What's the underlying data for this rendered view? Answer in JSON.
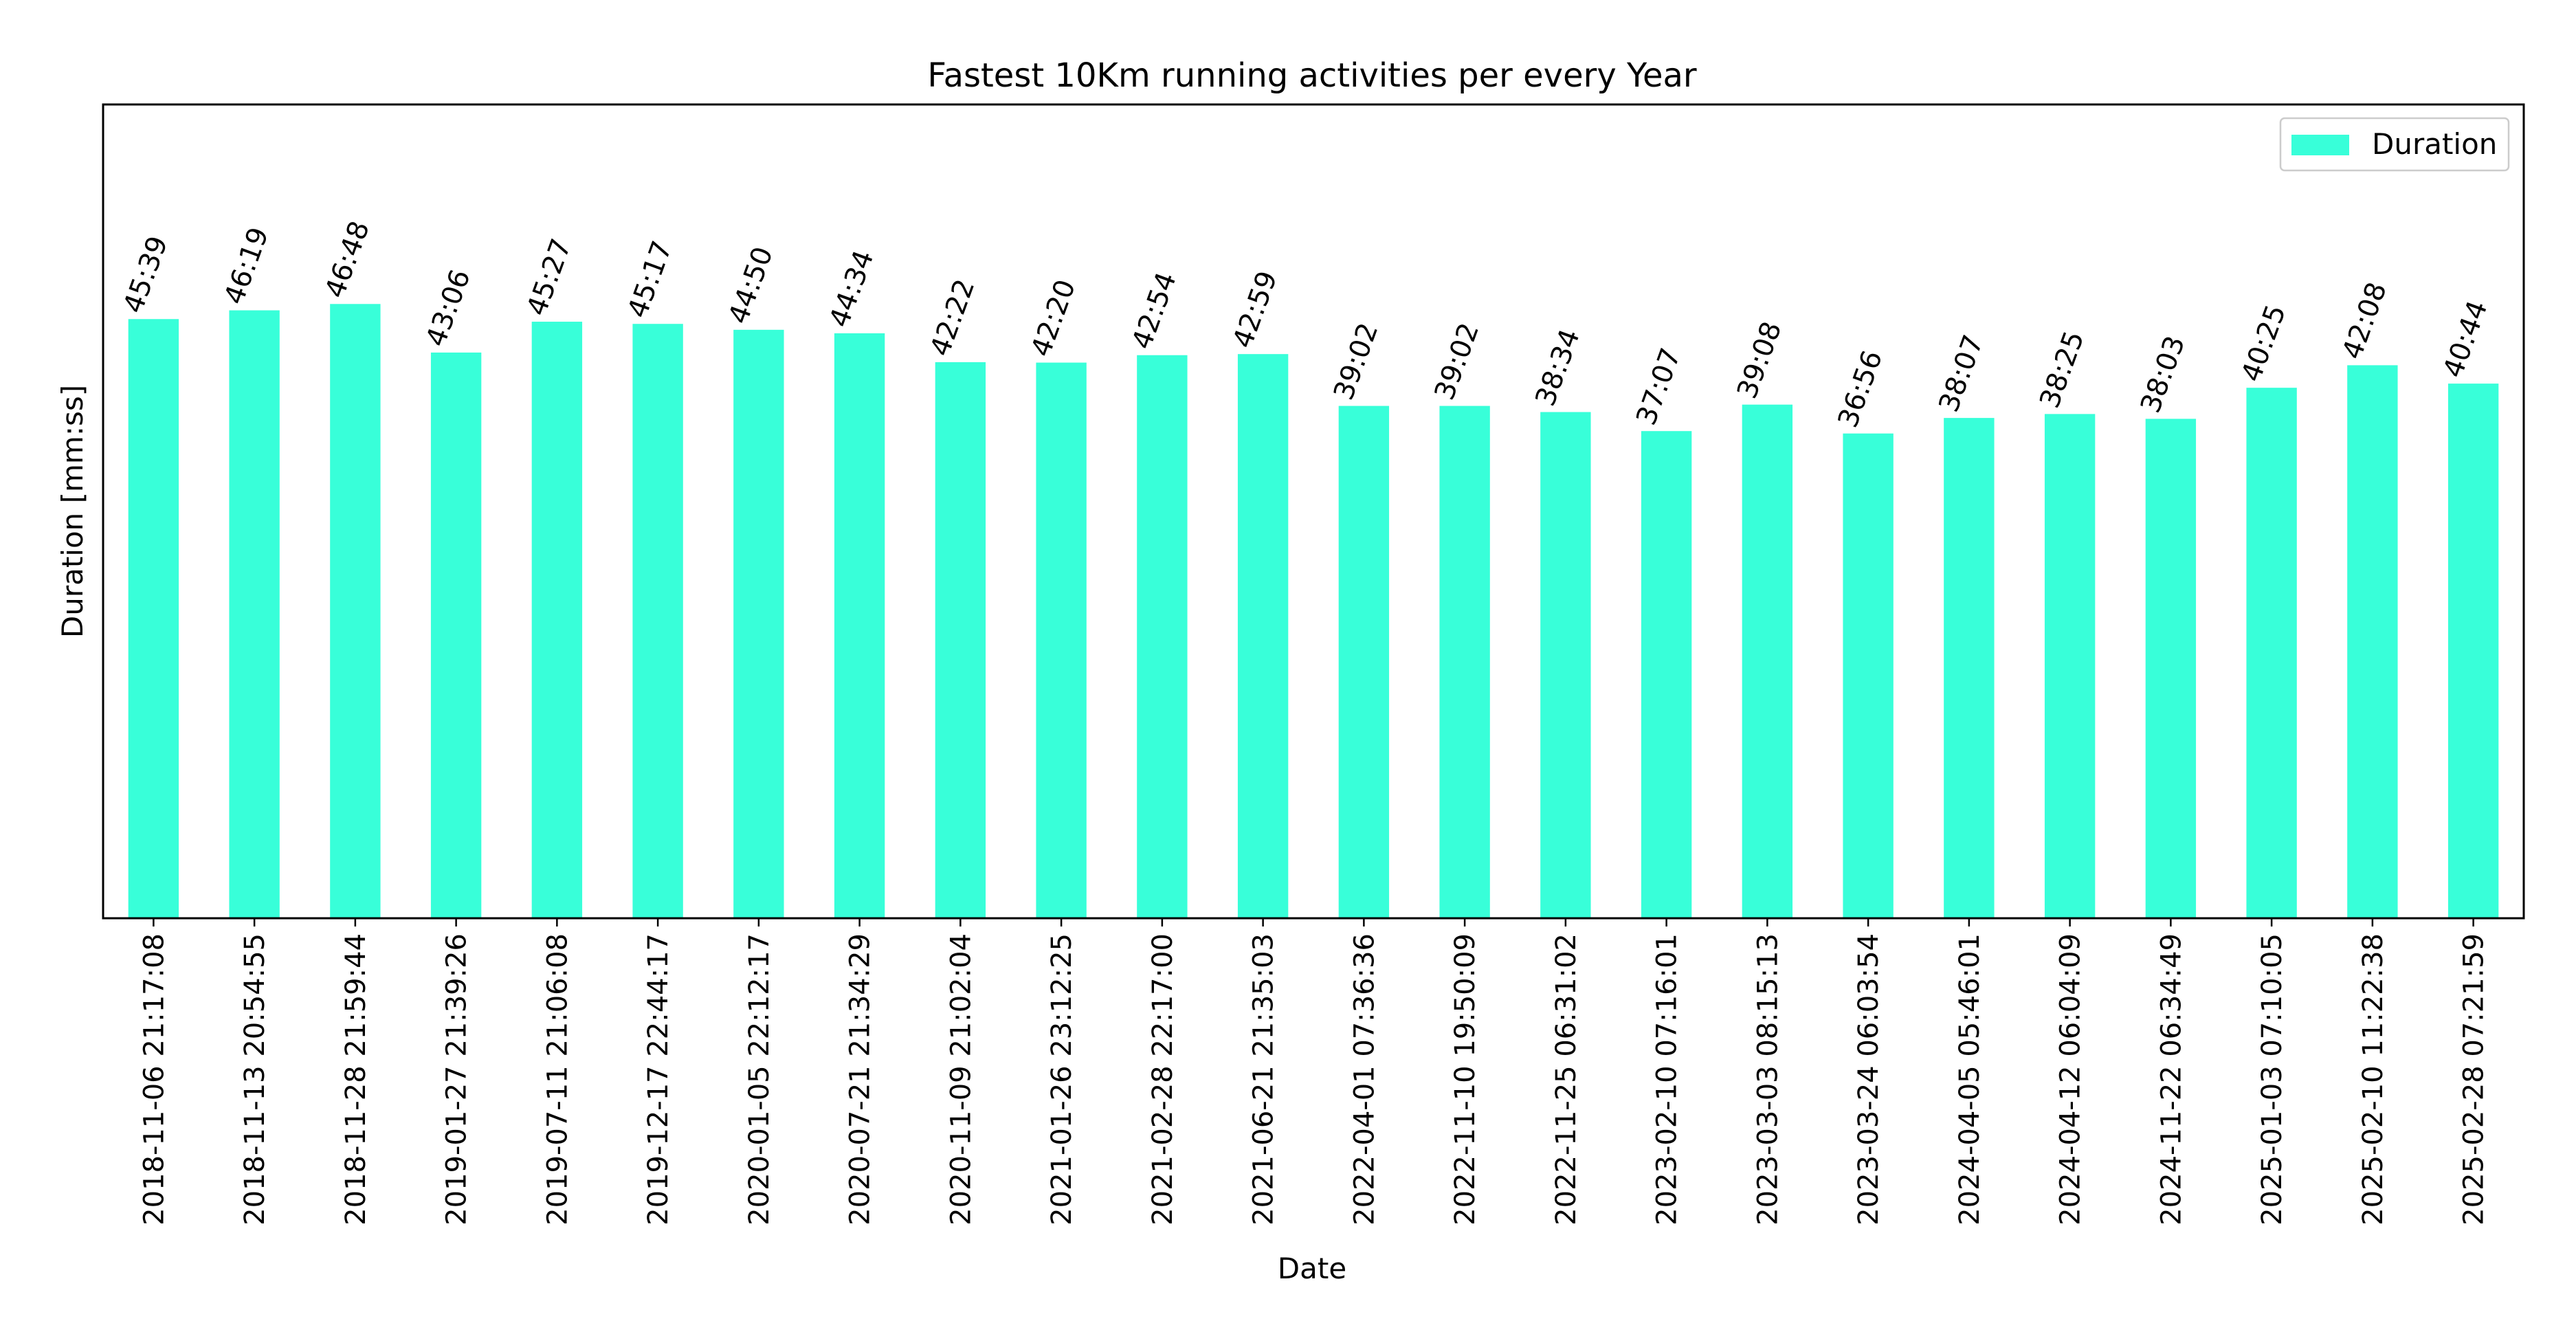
{
  "chart_data": {
    "type": "bar",
    "title": "Fastest 10Km running activities per every Year",
    "xlabel": "Date",
    "ylabel": "Duration [mm:ss]",
    "y_unit": "seconds",
    "ylim": [
      0,
      3720
    ],
    "y_ticks_shown": false,
    "grid": false,
    "legend_position": "top-right",
    "color": "#38ffd9",
    "categories": [
      "2018-11-06 21:17:08",
      "2018-11-13 20:54:55",
      "2018-11-28 21:59:44",
      "2019-01-27 21:39:26",
      "2019-07-11 21:06:08",
      "2019-12-17 22:44:17",
      "2020-01-05 22:12:17",
      "2020-07-21 21:34:29",
      "2020-11-09 21:02:04",
      "2021-01-26 23:12:25",
      "2021-02-28 22:17:00",
      "2021-06-21 21:35:03",
      "2022-04-01 07:36:36",
      "2022-11-10 19:50:09",
      "2022-11-25 06:31:02",
      "2023-02-10 07:16:01",
      "2023-03-03 08:15:13",
      "2023-03-24 06:03:54",
      "2024-04-05 05:46:01",
      "2024-04-12 06:04:09",
      "2024-11-22 06:34:49",
      "2025-01-03 07:10:05",
      "2025-02-10 11:22:38",
      "2025-02-28 07:21:59"
    ],
    "series": [
      {
        "name": "Duration",
        "values": [
          2739,
          2779,
          2808,
          2586,
          2727,
          2717,
          2690,
          2674,
          2542,
          2540,
          2574,
          2579,
          2342,
          2342,
          2314,
          2227,
          2348,
          2216,
          2287,
          2305,
          2283,
          2425,
          2528,
          2444
        ],
        "labels": [
          "45:39",
          "46:19",
          "46:48",
          "43:06",
          "45:27",
          "45:17",
          "44:50",
          "44:34",
          "42:22",
          "42:20",
          "42:54",
          "42:59",
          "39:02",
          "39:02",
          "38:34",
          "37:07",
          "39:08",
          "36:56",
          "38:07",
          "38:25",
          "38:03",
          "40:25",
          "42:08",
          "40:44"
        ]
      }
    ]
  }
}
